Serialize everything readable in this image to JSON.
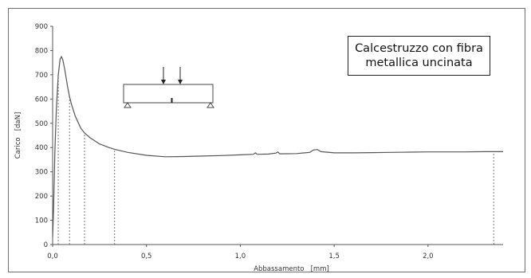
{
  "chart_data": {
    "type": "line",
    "xlabel": "Abbassamento   [mm]",
    "ylabel": "Carico   [daN]",
    "xlim": [
      0,
      2.4
    ],
    "ylim": [
      0,
      900
    ],
    "x_ticks": [
      0,
      0.5,
      1.0,
      1.5,
      2.0
    ],
    "x_tick_labels": [
      "0,0",
      "0,5",
      "1,0",
      "1,5",
      "2,0"
    ],
    "y_ticks": [
      0,
      100,
      200,
      300,
      400,
      500,
      600,
      700,
      800,
      900
    ],
    "y_tick_labels": [
      "0",
      "100",
      "200",
      "300",
      "400",
      "500",
      "600",
      "700",
      "800",
      "900"
    ],
    "grid": false,
    "series": [
      {
        "x": [
          0.0,
          0.005,
          0.012,
          0.02,
          0.03,
          0.04,
          0.047,
          0.055,
          0.065,
          0.08,
          0.09,
          0.1,
          0.12,
          0.15,
          0.17,
          0.2,
          0.25,
          0.3,
          0.33,
          0.4,
          0.5,
          0.6,
          0.7,
          0.8,
          0.9,
          1.0,
          1.07,
          1.08,
          1.09,
          1.15,
          1.19,
          1.2,
          1.21,
          1.3,
          1.37,
          1.39,
          1.41,
          1.43,
          1.5,
          1.6,
          1.7,
          1.8,
          1.9,
          2.0,
          2.1,
          2.2,
          2.3,
          2.35,
          2.4
        ],
        "y": [
          30,
          150,
          380,
          560,
          700,
          765,
          775,
          760,
          720,
          650,
          610,
          580,
          530,
          480,
          460,
          440,
          415,
          400,
          393,
          380,
          368,
          362,
          363,
          365,
          367,
          370,
          372,
          378,
          372,
          373,
          377,
          382,
          374,
          375,
          380,
          390,
          392,
          383,
          378,
          378,
          379,
          380,
          381,
          382,
          382,
          382,
          383,
          383,
          383
        ],
        "color": "#555555"
      }
    ],
    "markers": [
      0.03,
      0.09,
      0.17,
      0.33,
      2.35
    ],
    "annotation": "Calcestruzzo con fibra\nmetallica uncinata"
  }
}
